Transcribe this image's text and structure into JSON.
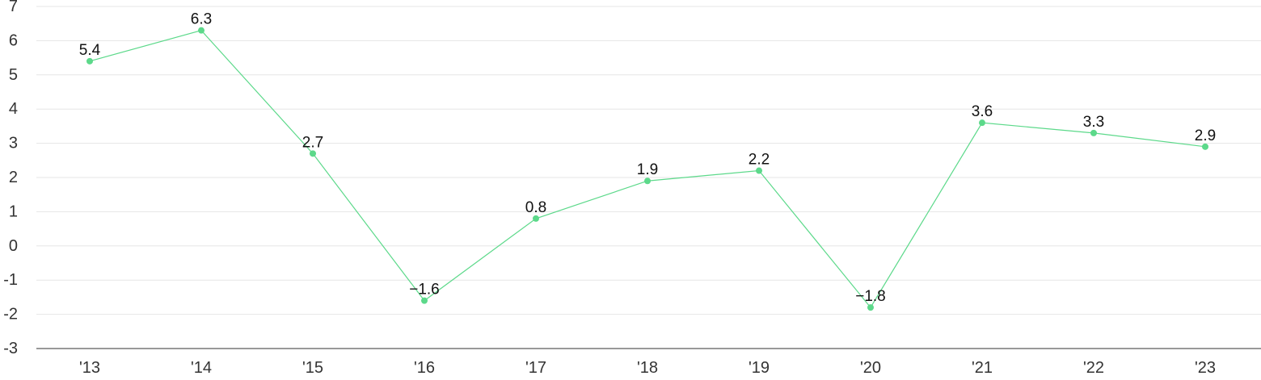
{
  "chart_data": {
    "type": "line",
    "title": "",
    "xlabel": "",
    "ylabel": "",
    "categories": [
      "'13",
      "'14",
      "'15",
      "'16",
      "'17",
      "'18",
      "'19",
      "'20",
      "'21",
      "'22",
      "'23"
    ],
    "series": [
      {
        "values": [
          5.4,
          6.3,
          2.7,
          -1.6,
          0.8,
          1.9,
          2.2,
          -1.8,
          3.6,
          3.3,
          2.9
        ],
        "labels": [
          "5.4",
          "6.3",
          "2.7",
          "−1.6",
          "0.8",
          "1.9",
          "2.2",
          "−1.8",
          "3.6",
          "3.3",
          "2.9"
        ]
      }
    ],
    "ylim": [
      -3,
      7
    ],
    "yticks": [
      7,
      6,
      5,
      4,
      3,
      2,
      1,
      0,
      -1,
      -2,
      -3
    ],
    "ytick_labels": [
      "7",
      "6",
      "5",
      "4",
      "3",
      "2",
      "1",
      "0",
      "-1",
      "-2",
      "-3"
    ],
    "grid": true,
    "colors": {
      "series": "#5cd98a",
      "grid": "#e6e6e6",
      "axis": "#333333"
    }
  }
}
